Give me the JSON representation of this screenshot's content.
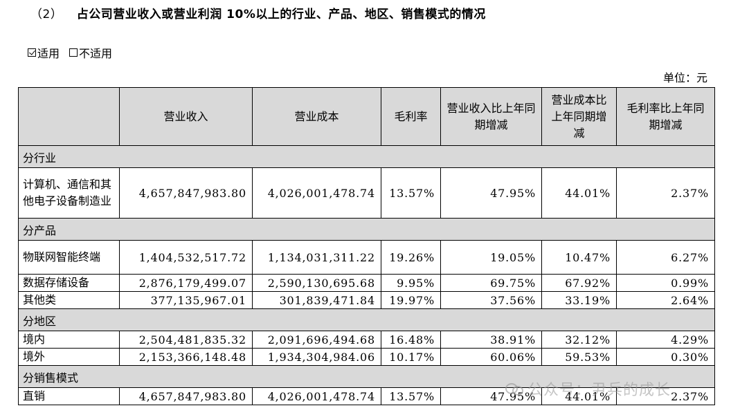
{
  "heading": {
    "number": "（2）",
    "title": "占公司营业收入或营业利润 10%以上的行业、产品、地区、销售模式的情况"
  },
  "applicability": {
    "applicable": "适用",
    "not_applicable": "不适用"
  },
  "unit": "单位：元",
  "table": {
    "headers": [
      "",
      "营业收入",
      "营业成本",
      "毛利率",
      "营业收入比上年同期增减",
      "营业成本比上年同期增减",
      "毛利率比上年同期增减"
    ],
    "sections": [
      {
        "title": "分行业",
        "rows": [
          {
            "label": "计算机、通信和其他电子设备制造业",
            "revenue": "4,657,847,983.80",
            "cost": "4,026,001,478.74",
            "margin": "13.57%",
            "rev_change": "47.95%",
            "cost_change": "44.01%",
            "margin_change": "2.37%"
          }
        ]
      },
      {
        "title": "分产品",
        "rows": [
          {
            "label": "物联网智能终端",
            "revenue": "1,404,532,517.72",
            "cost": "1,134,031,311.22",
            "margin": "19.26%",
            "rev_change": "19.05%",
            "cost_change": "10.47%",
            "margin_change": "6.27%"
          },
          {
            "label": "数据存储设备",
            "revenue": "2,876,179,499.07",
            "cost": "2,590,130,695.68",
            "margin": "9.95%",
            "rev_change": "69.75%",
            "cost_change": "67.92%",
            "margin_change": "0.99%"
          },
          {
            "label": "其他类",
            "revenue": "377,135,967.01",
            "cost": "301,839,471.84",
            "margin": "19.97%",
            "rev_change": "37.56%",
            "cost_change": "33.19%",
            "margin_change": "2.64%"
          }
        ]
      },
      {
        "title": "分地区",
        "rows": [
          {
            "label": "境内",
            "revenue": "2,504,481,835.32",
            "cost": "2,091,696,494.68",
            "margin": "16.48%",
            "rev_change": "38.91%",
            "cost_change": "32.12%",
            "margin_change": "4.29%"
          },
          {
            "label": "境外",
            "revenue": "2,153,366,148.48",
            "cost": "1,934,304,984.06",
            "margin": "10.17%",
            "rev_change": "60.06%",
            "cost_change": "59.53%",
            "margin_change": "0.30%"
          }
        ]
      },
      {
        "title": "分销售模式",
        "rows": [
          {
            "label": "直销",
            "revenue": "4,657,847,983.80",
            "cost": "4,026,001,478.74",
            "margin": "13.57%",
            "rev_change": "47.95%",
            "cost_change": "44.01%",
            "margin_change": "2.37%"
          }
        ]
      }
    ]
  },
  "watermark": "公众号：尹兵的成长"
}
